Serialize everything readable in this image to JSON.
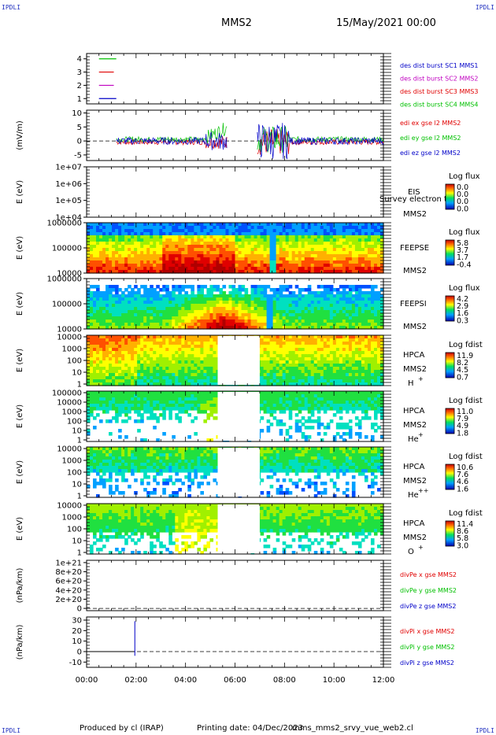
{
  "header": {
    "corner_left_top": "IPDLI",
    "corner_right_top": "IPDLI",
    "corner_left_bottom": "IPDLI",
    "corner_right_bottom": "IPDLI",
    "spacecraft": "MMS2",
    "datetime": "15/May/2021 00:00"
  },
  "footer": {
    "producer": "Produced by cl (IRAP)",
    "printing_date": "Printing date: 04/Dec/2023",
    "filename": "mms_mms2_srvy_vue_web2.cl"
  },
  "x_axis": {
    "tick_labels": [
      "00:00",
      "02:00",
      "04:00",
      "06:00",
      "08:00",
      "10:00",
      "12:00"
    ],
    "range_hours": [
      0,
      12
    ]
  },
  "colors": {
    "red": "#e00000",
    "green": "#00c000",
    "blue": "#0000c8",
    "magenta": "#c000c0"
  },
  "chart_data": [
    {
      "type": "line",
      "panel": "burst-availability",
      "y_ticks": [
        "1",
        "2",
        "3",
        "4"
      ],
      "ylim": [
        0.6,
        4.4
      ],
      "legend": [
        "des dist burst SC1 MMS1",
        "des dist burst SC2 MMS2",
        "des dist burst SC3 MMS3",
        "des dist burst SC4 MMS4"
      ],
      "series_colors": [
        "#0000c8",
        "#c000c0",
        "#e00000",
        "#00c000"
      ],
      "segments": [
        {
          "level": 4,
          "x": [
            0.5,
            1.2
          ],
          "color": "#00c000"
        },
        {
          "level": 3,
          "x": [
            0.5,
            1.1
          ],
          "color": "#e00000"
        },
        {
          "level": 2,
          "x": [
            0.5,
            1.1
          ],
          "color": "#c000c0"
        },
        {
          "level": 1,
          "x": [
            0.5,
            1.2
          ],
          "color": "#0000c8"
        }
      ]
    },
    {
      "type": "line",
      "panel": "electric-field",
      "ylabel": "(mV/m)",
      "y_ticks": [
        "-5",
        "0",
        "5",
        "10"
      ],
      "ylim": [
        -7,
        11
      ],
      "legend": [
        "edi ex gse l2 MMS2",
        "edi ey gse l2 MMS2",
        "edi ez gse l2 MMS2"
      ],
      "series_colors": [
        "#e00000",
        "#00c000",
        "#0000c8"
      ],
      "data_gap_hours": [
        5.7,
        6.9
      ]
    },
    {
      "type": "heatmap",
      "panel": "EIS",
      "ylabel": "E (eV)",
      "y_ticks": [
        "1e+04",
        "1e+05",
        "1e+06",
        "1e+07"
      ],
      "instrument": "EIS",
      "spacecraft": "MMS2",
      "note": "Survey electron to",
      "colorbar_title": "Log flux",
      "colorbar_ticks": [
        "0.0",
        "0.0",
        "0.0",
        "0.0"
      ]
    },
    {
      "type": "heatmap",
      "panel": "FEEPSE",
      "ylabel": "E (eV)",
      "y_ticks": [
        "10000",
        "100000",
        "1000000"
      ],
      "instrument": "FEEPSE",
      "spacecraft": "MMS2",
      "colorbar_title": "Log flux",
      "colorbar_ticks": [
        "5.8",
        "3.7",
        "1.7",
        "-0.4"
      ]
    },
    {
      "type": "heatmap",
      "panel": "FEEPSI",
      "ylabel": "E (eV)",
      "y_ticks": [
        "10000",
        "100000",
        "1000000"
      ],
      "instrument": "FEEPSI",
      "spacecraft": "MMS2",
      "colorbar_title": "Log flux",
      "colorbar_ticks": [
        "4.2",
        "2.9",
        "1.6",
        "0.3"
      ]
    },
    {
      "type": "heatmap",
      "panel": "HPCA-H",
      "ylabel": "E (eV)",
      "y_ticks": [
        "1",
        "10",
        "100",
        "1000",
        "10000"
      ],
      "instrument": "HPCA",
      "spacecraft": "MMS2",
      "species": "H",
      "species_charge": "+",
      "colorbar_title": "Log fdist",
      "colorbar_ticks": [
        "11.9",
        "8.2",
        "4.5",
        "0.7"
      ],
      "data_gap_hours": [
        5.3,
        7.0
      ]
    },
    {
      "type": "heatmap",
      "panel": "HPCA-He",
      "ylabel": "E (eV)",
      "y_ticks": [
        "1",
        "10",
        "100",
        "1000",
        "10000",
        "100000"
      ],
      "instrument": "HPCA",
      "spacecraft": "MMS2",
      "species": "He",
      "species_charge": "+",
      "colorbar_title": "Log fdist",
      "colorbar_ticks": [
        "11.0",
        "7.9",
        "4.9",
        "1.8"
      ],
      "data_gap_hours": [
        5.3,
        7.0
      ]
    },
    {
      "type": "heatmap",
      "panel": "HPCA-He++",
      "ylabel": "E (eV)",
      "y_ticks": [
        "1",
        "10",
        "100",
        "1000",
        "10000"
      ],
      "instrument": "HPCA",
      "spacecraft": "MMS2",
      "species": "He",
      "species_charge": "++",
      "colorbar_title": "Log fdist",
      "colorbar_ticks": [
        "10.6",
        "7.6",
        "4.6",
        "1.6"
      ],
      "data_gap_hours": [
        5.3,
        7.0
      ]
    },
    {
      "type": "heatmap",
      "panel": "HPCA-O",
      "ylabel": "E (eV)",
      "y_ticks": [
        "1",
        "10",
        "100",
        "1000",
        "10000"
      ],
      "instrument": "HPCA",
      "spacecraft": "MMS2",
      "species": "O",
      "species_charge": "+",
      "colorbar_title": "Log fdist",
      "colorbar_ticks": [
        "11.4",
        "8.6",
        "5.8",
        "3.0"
      ],
      "data_gap_hours": [
        5.3,
        7.0
      ]
    },
    {
      "type": "line",
      "panel": "divPe",
      "ylabel": "(nPa/km)",
      "y_ticks": [
        "0",
        "2e+20",
        "4e+20",
        "6e+20",
        "8e+20",
        "1e+21"
      ],
      "ylim": [
        -5e+19,
        1.05e+21
      ],
      "legend": [
        "divPe x gse MMS2",
        "divPe y gse MMS2",
        "divPe z gse MMS2"
      ],
      "series_colors": [
        "#e00000",
        "#00c000",
        "#0000c8"
      ]
    },
    {
      "type": "line",
      "panel": "divPi",
      "ylabel": "(nPa/km)",
      "y_ticks": [
        "-10",
        "0",
        "10",
        "20",
        "30"
      ],
      "ylim": [
        -15,
        33
      ],
      "legend": [
        "divPi x gse MMS2",
        "divPi y gse MMS2",
        "divPi z gse MMS2"
      ],
      "series_colors": [
        "#e00000",
        "#00c000",
        "#0000c8"
      ],
      "spike": {
        "x": 1.95,
        "ymin": -4,
        "ymax": 29,
        "color": "#0000c8"
      }
    }
  ]
}
